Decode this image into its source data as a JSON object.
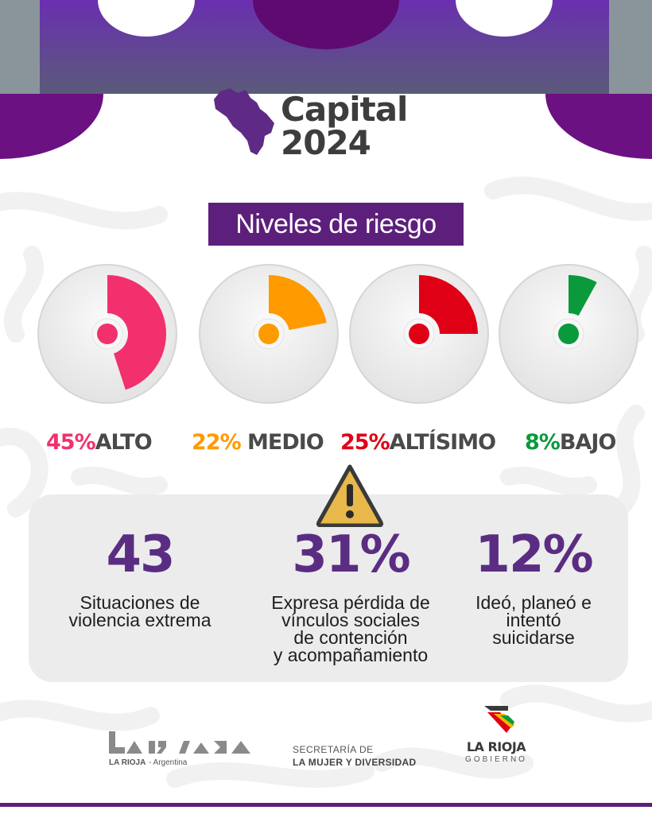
{
  "header": {
    "title_line1": "Capital",
    "title_line2": "2024"
  },
  "section": {
    "title": "Niveles de riesgo"
  },
  "risk_levels": [
    {
      "percent": "45%",
      "label": "ALTO",
      "value": 45,
      "color": "#f2306e"
    },
    {
      "percent": "22%",
      "label": " MEDIO",
      "value": 22,
      "color": "#ff9a00"
    },
    {
      "percent": "25%",
      "label": "ALTÍSIMO",
      "value": 25,
      "color": "#e00016"
    },
    {
      "percent": "8%",
      "label": "BAJO",
      "value": 8,
      "color": "#0a9a3c"
    }
  ],
  "stats": [
    {
      "number": "43",
      "desc": [
        "Situaciones de",
        "violencia extrema"
      ]
    },
    {
      "number": "31%",
      "desc": [
        "Expresa pérdida de",
        "vínculos sociales",
        "de contención",
        "y acompañamiento"
      ]
    },
    {
      "number": "12%",
      "desc": [
        "Ideó, planeó e",
        "intentó",
        "suicidarse"
      ]
    }
  ],
  "footer": {
    "logo1_caption_bold": "LA RIOJA",
    "logo1_caption_rest": " - Argentina",
    "logo2_line1": "SECRETARÍA DE",
    "logo2_line2": "LA MUJER Y DIVERSIDAD",
    "logo3_line1": "LA RIOJA",
    "logo3_line2": "GOBIERNO"
  },
  "colors": {
    "brand_purple": "#5d1f7c",
    "stat_purple": "#5a2d82",
    "warning_yellow": "#e8b84b"
  },
  "icons": {
    "map": "province-map-icon",
    "warning": "warning-triangle-icon"
  }
}
